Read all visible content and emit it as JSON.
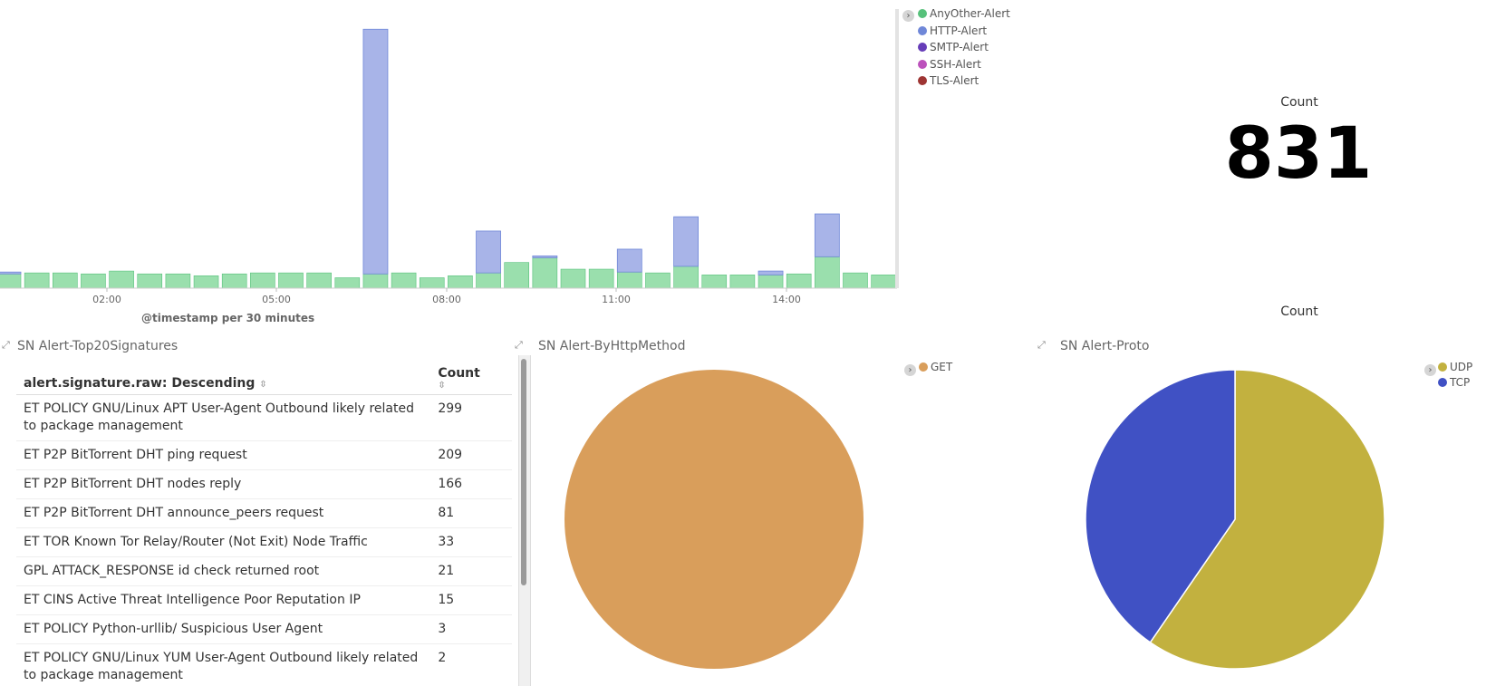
{
  "histogram": {
    "x_label": "@timestamp per 30 minutes",
    "tick_labels": [
      "02:00",
      "05:00",
      "08:00",
      "11:00",
      "14:00"
    ],
    "legend": [
      {
        "label": "AnyOther-Alert",
        "color": "#57c17b"
      },
      {
        "label": "HTTP-Alert",
        "color": "#6f87d8"
      },
      {
        "label": "SMTP-Alert",
        "color": "#663db8"
      },
      {
        "label": "SSH-Alert",
        "color": "#bc52bc"
      },
      {
        "label": "TLS-Alert",
        "color": "#9e3533"
      }
    ],
    "colors": {
      "any": "#9adfad",
      "any_edge": "#57c17b",
      "http": "#a8b4e8",
      "http_edge": "#6f87d8"
    },
    "any_values": [
      1,
      1.07,
      1.07,
      1,
      1.2,
      1,
      1,
      0.87,
      1,
      1.07,
      1.07,
      1.07,
      0.73,
      1,
      1.07,
      0.73,
      0.87,
      1.07,
      1.8,
      2.13,
      1.33,
      1.33,
      1.13,
      1.07,
      1.53,
      0.93,
      0.93,
      0.93,
      1,
      2.2,
      1.07,
      0.93
    ],
    "http_values": [
      0.13,
      0,
      0,
      0,
      0,
      0,
      0,
      0,
      0,
      0,
      0,
      0,
      0,
      17.13,
      0,
      0,
      0,
      2.93,
      0,
      0.13,
      0,
      0,
      1.6,
      0,
      3.47,
      0,
      0,
      0.27,
      0,
      3,
      0,
      0
    ],
    "y_max": 18.4
  },
  "metric": {
    "label": "Count",
    "value": "831"
  },
  "pie_top_label": "Count",
  "signatures": {
    "title": "SN Alert-Top20Signatures",
    "col_signature": "alert.signature.raw: Descending",
    "col_count": "Count",
    "rows": [
      {
        "signature": "ET POLICY GNU/Linux APT User-Agent Outbound likely related to package management",
        "count": "299"
      },
      {
        "signature": "ET P2P BitTorrent DHT ping request",
        "count": "209"
      },
      {
        "signature": "ET P2P BitTorrent DHT nodes reply",
        "count": "166"
      },
      {
        "signature": "ET P2P BitTorrent DHT announce_peers request",
        "count": "81"
      },
      {
        "signature": "ET TOR Known Tor Relay/Router (Not Exit) Node Traffic",
        "count": "33"
      },
      {
        "signature": "GPL ATTACK_RESPONSE id check returned root",
        "count": "21"
      },
      {
        "signature": "ET CINS Active Threat Intelligence Poor Reputation IP",
        "count": "15"
      },
      {
        "signature": "ET POLICY Python-urllib/ Suspicious User Agent",
        "count": "3"
      },
      {
        "signature": "ET POLICY GNU/Linux YUM User-Agent Outbound likely related to package management",
        "count": "2"
      }
    ]
  },
  "http_method": {
    "title": "SN Alert-ByHttpMethod",
    "legend": [
      {
        "label": "GET",
        "color": "#d99e5b"
      }
    ]
  },
  "proto": {
    "title": "SN Alert-Proto",
    "legend": [
      {
        "label": "UDP",
        "color": "#c2b13f"
      },
      {
        "label": "TCP",
        "color": "#4051c4"
      }
    ]
  },
  "chart_data": [
    {
      "type": "bar",
      "stacked": true,
      "title": "",
      "xlabel": "@timestamp per 30 minutes",
      "ylabel": "",
      "x_ticks": [
        "02:00",
        "05:00",
        "08:00",
        "11:00",
        "14:00"
      ],
      "series": [
        {
          "name": "AnyOther-Alert",
          "values": [
            1,
            1.07,
            1.07,
            1,
            1.2,
            1,
            1,
            0.87,
            1,
            1.07,
            1.07,
            1.07,
            0.73,
            1,
            1.07,
            0.73,
            0.87,
            1.07,
            1.8,
            2.13,
            1.33,
            1.33,
            1.13,
            1.07,
            1.53,
            0.93,
            0.93,
            0.93,
            1,
            2.2,
            1.07,
            0.93
          ]
        },
        {
          "name": "HTTP-Alert",
          "values": [
            0.13,
            0,
            0,
            0,
            0,
            0,
            0,
            0,
            0,
            0,
            0,
            0,
            0,
            17.13,
            0,
            0,
            0,
            2.93,
            0,
            0.13,
            0,
            0,
            1.6,
            0,
            3.47,
            0,
            0,
            0.27,
            0,
            3,
            0,
            0
          ]
        },
        {
          "name": "SMTP-Alert",
          "values": []
        },
        {
          "name": "SSH-Alert",
          "values": []
        },
        {
          "name": "TLS-Alert",
          "values": []
        }
      ]
    },
    {
      "type": "pie",
      "title": "SN Alert-ByHttpMethod",
      "categories": [
        "GET"
      ],
      "values": [
        100
      ]
    },
    {
      "type": "pie",
      "title": "SN Alert-Proto",
      "categories": [
        "UDP",
        "TCP"
      ],
      "values": [
        59.6,
        40.4
      ]
    }
  ]
}
